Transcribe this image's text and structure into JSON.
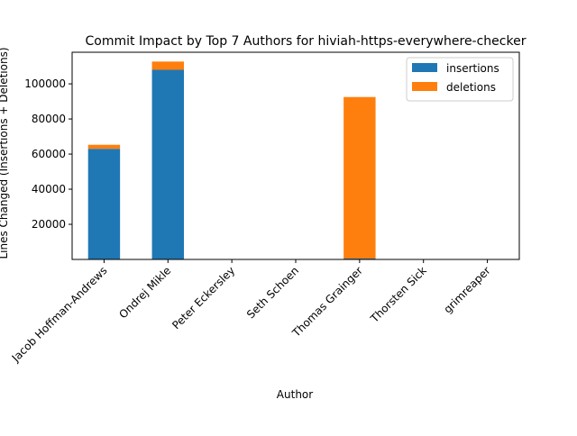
{
  "chart_data": {
    "type": "bar",
    "stacked": true,
    "title": "Commit Impact by Top 7 Authors for hiviah-https-everywhere-checker",
    "xlabel": "Author",
    "ylabel": "Lines Changed (Insertions + Deletions)",
    "categories": [
      "Jacob Hoffman-Andrews",
      "Ondrej Mikle",
      "Peter Eckersley",
      "Seth Schoen",
      "Thomas Grainger",
      "Thorsten Sick",
      "grimreaper"
    ],
    "series": [
      {
        "name": "insertions",
        "color": "#1f77b4",
        "values": [
          63000,
          108000,
          0,
          0,
          500,
          0,
          0
        ]
      },
      {
        "name": "deletions",
        "color": "#ff7f0e",
        "values": [
          2300,
          4700,
          0,
          0,
          92000,
          0,
          0
        ]
      }
    ],
    "yticks": [
      20000,
      40000,
      60000,
      80000,
      100000
    ],
    "ylim": [
      0,
      118000
    ],
    "grid": false,
    "legend_position": "top-right"
  }
}
